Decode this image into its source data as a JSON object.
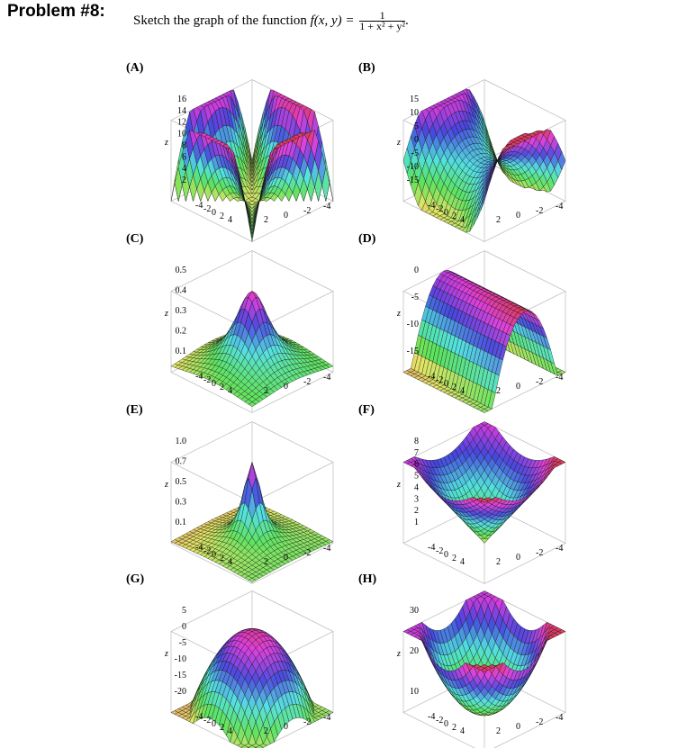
{
  "header": {
    "title": "Problem #8:",
    "prompt_text": "Sketch the graph of the function",
    "function_lhs": "f(x, y) =",
    "fraction_numerator": "1",
    "fraction_denominator": "1 + x² + y²",
    "trailing": "."
  },
  "panels": [
    {
      "label": "(A)",
      "shape": "saddle-ridges",
      "zlabel": "z",
      "zticks": [
        "16",
        "14",
        "12",
        "10",
        "8",
        "6",
        "4",
        "2"
      ],
      "xticks": [
        "-4",
        "-2",
        "0",
        "2",
        "4"
      ],
      "yticks": [
        "2",
        "0",
        "-2",
        "-4"
      ]
    },
    {
      "label": "(B)",
      "shape": "saddle",
      "zlabel": "z",
      "zticks": [
        "15",
        "10",
        "5",
        "0",
        "-5",
        "-10",
        "-15"
      ],
      "xticks": [
        "-4",
        "-2",
        "0",
        "2",
        "4"
      ],
      "yticks": [
        "2",
        "0",
        "-2",
        "-4"
      ]
    },
    {
      "label": "(C)",
      "shape": "bump-wide",
      "zlabel": "z",
      "zticks": [
        "0.5",
        "0.4",
        "0.3",
        "0.2",
        "0.1"
      ],
      "xticks": [
        "-4",
        "-2",
        "0",
        "2",
        "4"
      ],
      "yticks": [
        "2",
        "0",
        "-2",
        "-4"
      ]
    },
    {
      "label": "(D)",
      "shape": "cylinder",
      "zlabel": "z",
      "zticks": [
        "0",
        "-5",
        "-10",
        "-15"
      ],
      "xticks": [
        "-4",
        "-2",
        "0",
        "2",
        "4"
      ],
      "yticks": [
        "2",
        "0",
        "-2",
        "-4"
      ]
    },
    {
      "label": "(E)",
      "shape": "bump-sharp",
      "zlabel": "z",
      "zticks": [
        "1.0",
        "0.7",
        "0.5",
        "0.3",
        "0.1"
      ],
      "xticks": [
        "-4",
        "-2",
        "0",
        "2",
        "4"
      ],
      "yticks": [
        "2",
        "0",
        "-2",
        "-4"
      ]
    },
    {
      "label": "(F)",
      "shape": "cone",
      "zlabel": "z",
      "zticks": [
        "8",
        "7",
        "6",
        "5",
        "4",
        "3",
        "2",
        "1"
      ],
      "xticks": [
        "-4",
        "-2",
        "0",
        "2",
        "4"
      ],
      "yticks": [
        "2",
        "0",
        "-2",
        "-4"
      ]
    },
    {
      "label": "(G)",
      "shape": "dome",
      "zlabel": "z",
      "zticks": [
        "5",
        "0",
        "-5",
        "-10",
        "-15",
        "-20"
      ],
      "xticks": [
        "-4",
        "-2",
        "0",
        "2",
        "4"
      ],
      "yticks": [
        "2",
        "0",
        "-2",
        "-4"
      ]
    },
    {
      "label": "(H)",
      "shape": "bowl",
      "zlabel": "z",
      "zticks": [
        "30",
        "20",
        "10"
      ],
      "xticks": [
        "-4",
        "-2",
        "0",
        "2",
        "4"
      ],
      "yticks": [
        "2",
        "0",
        "-2",
        "-4"
      ]
    }
  ]
}
